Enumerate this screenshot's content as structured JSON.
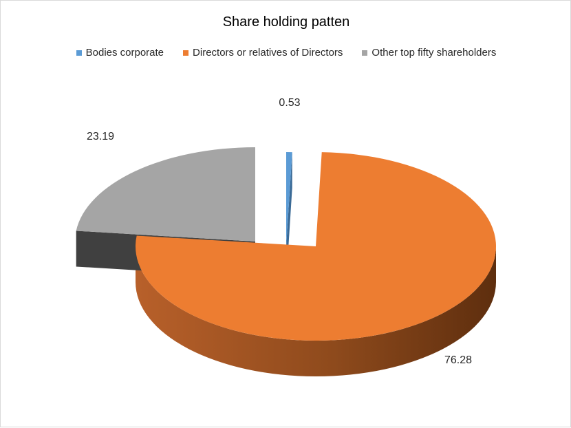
{
  "chart_data": {
    "type": "pie",
    "title": "Share holding patten",
    "legend_position": "top",
    "categories": [
      "Bodies corporate",
      "Directors or relatives of Directors",
      "Other top fifty shareholders"
    ],
    "values": [
      0.53,
      76.28,
      23.19
    ],
    "data_labels": [
      "0.53",
      "76.28",
      "23.19"
    ],
    "colors": [
      "#5B9BD5",
      "#ED7D31",
      "#A5A5A5"
    ],
    "side_colors": [
      "#3A6A96",
      "#8A4215",
      "#404040"
    ],
    "exploded": true,
    "three_d": true
  }
}
